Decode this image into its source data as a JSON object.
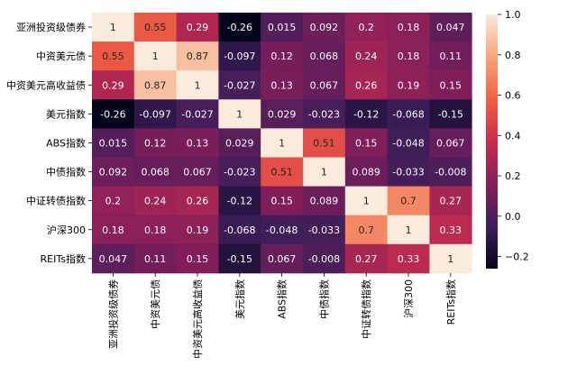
{
  "chart_data": {
    "type": "heatmap",
    "title": "",
    "xlabel": "",
    "ylabel": "",
    "rows": [
      "亚洲投资级债券",
      "中资美元债",
      "中资美元高收益债",
      "美元指数",
      "ABS指数",
      "中债指数",
      "中证转债指数",
      "沪深300",
      "REITs指数"
    ],
    "columns": [
      "亚洲投资级债券",
      "中资美元债",
      "中资美元高收益债",
      "美元指数",
      "ABS指数",
      "中债指数",
      "中证转债指数",
      "沪深300",
      "REITs指数"
    ],
    "values": [
      [
        1,
        0.55,
        0.29,
        -0.26,
        0.015,
        0.092,
        0.2,
        0.18,
        0.047
      ],
      [
        0.55,
        1,
        0.87,
        -0.097,
        0.12,
        0.068,
        0.24,
        0.18,
        0.11
      ],
      [
        0.29,
        0.87,
        1,
        -0.027,
        0.13,
        0.067,
        0.26,
        0.19,
        0.15
      ],
      [
        -0.26,
        -0.097,
        -0.027,
        1,
        0.029,
        -0.023,
        -0.12,
        -0.068,
        -0.15
      ],
      [
        0.015,
        0.12,
        0.13,
        0.029,
        1,
        0.51,
        0.15,
        -0.048,
        0.067
      ],
      [
        0.092,
        0.068,
        0.067,
        -0.023,
        0.51,
        1,
        0.089,
        -0.033,
        -0.008
      ],
      [
        0.2,
        0.24,
        0.26,
        -0.12,
        0.15,
        0.089,
        1,
        0.7,
        0.27
      ],
      [
        0.18,
        0.18,
        0.19,
        -0.068,
        -0.048,
        -0.033,
        0.7,
        1,
        0.33
      ],
      [
        0.047,
        0.11,
        0.15,
        -0.15,
        0.067,
        -0.008,
        0.27,
        0.33,
        1
      ]
    ],
    "value_labels": [
      [
        "1",
        "0.55",
        "0.29",
        "-0.26",
        "0.015",
        "0.092",
        "0.2",
        "0.18",
        "0.047"
      ],
      [
        "0.55",
        "1",
        "0.87",
        "-0.097",
        "0.12",
        "0.068",
        "0.24",
        "0.18",
        "0.11"
      ],
      [
        "0.29",
        "0.87",
        "1",
        "-0.027",
        "0.13",
        "0.067",
        "0.26",
        "0.19",
        "0.15"
      ],
      [
        "-0.26",
        "-0.097",
        "-0.027",
        "1",
        "0.029",
        "-0.023",
        "-0.12",
        "-0.068",
        "-0.15"
      ],
      [
        "0.015",
        "0.12",
        "0.13",
        "0.029",
        "1",
        "0.51",
        "0.15",
        "-0.048",
        "0.067"
      ],
      [
        "0.092",
        "0.068",
        "0.067",
        "-0.023",
        "0.51",
        "1",
        "0.089",
        "-0.033",
        "-0.008"
      ],
      [
        "0.2",
        "0.24",
        "0.26",
        "-0.12",
        "0.15",
        "0.089",
        "1",
        "0.7",
        "0.27"
      ],
      [
        "0.18",
        "0.18",
        "0.19",
        "-0.068",
        "-0.048",
        "-0.033",
        "0.7",
        "1",
        "0.33"
      ],
      [
        "0.047",
        "0.11",
        "0.15",
        "-0.15",
        "0.067",
        "-0.008",
        "0.27",
        "0.33",
        "1"
      ]
    ],
    "colorbar": {
      "range": [
        -0.26,
        1.0
      ],
      "ticks": [
        1.0,
        0.8,
        0.6,
        0.4,
        0.2,
        0.0,
        -0.2
      ],
      "tick_labels": [
        "1.0",
        "0.8",
        "0.6",
        "0.4",
        "0.2",
        "0.0",
        "−0.2"
      ],
      "colormap": "rocket",
      "stops": [
        "#03051a",
        "#3e1e5a",
        "#841e5a",
        "#c92d4c",
        "#f06043",
        "#f6a47b",
        "#faebdd"
      ]
    },
    "grid": false,
    "legend": "colorbar-right"
  }
}
